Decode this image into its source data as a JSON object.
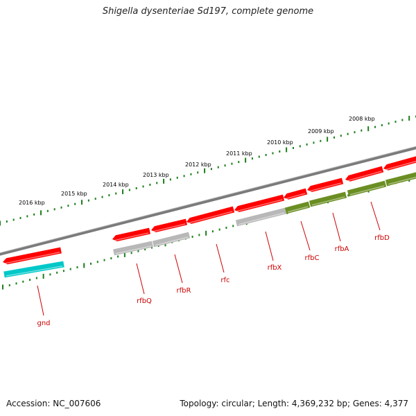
{
  "title": "Shigella dysenteriae Sd197, complete genome",
  "footer": {
    "accession": "Accession: NC_007606",
    "topology": "Topology: circular; Length: 4,369,232 bp; Genes: 4,377"
  },
  "colors": {
    "backbone": "#7f7f7f",
    "ticks": "#1a7f1a",
    "cds": "#ff0000",
    "gray_feature": "#b8b8b8",
    "olive_feature": "#6b8e23",
    "cyan_feature": "#00c8c8",
    "label": "#cc0000"
  },
  "ruler_labels": [
    "2016 kbp",
    "2015 kbp",
    "2014 kbp",
    "2013 kbp",
    "2012 kbp",
    "2011 kbp",
    "2010 kbp",
    "2009 kbp",
    "2008 kbp"
  ],
  "gene_labels": [
    "gnd",
    "rfbQ",
    "rfbR",
    "rfc",
    "rfbX",
    "rfbC",
    "rfbA",
    "rfbD"
  ]
}
